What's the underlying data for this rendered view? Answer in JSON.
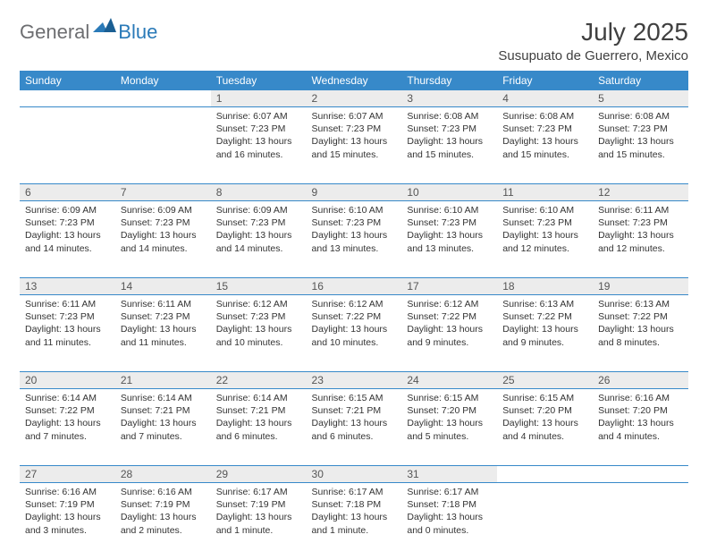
{
  "brand": {
    "general": "General",
    "blue": "Blue"
  },
  "title": "July 2025",
  "location": "Susupuato de Guerrero, Mexico",
  "colors": {
    "header_bg": "#3789c9",
    "header_text": "#ffffff",
    "daynum_bg": "#ececec",
    "text": "#333333",
    "brand_gray": "#6d6e71",
    "brand_blue": "#2a7ab8"
  },
  "weekdays": [
    "Sunday",
    "Monday",
    "Tuesday",
    "Wednesday",
    "Thursday",
    "Friday",
    "Saturday"
  ],
  "weeks": [
    [
      null,
      null,
      {
        "n": "1",
        "sr": "Sunrise: 6:07 AM",
        "ss": "Sunset: 7:23 PM",
        "dl": "Daylight: 13 hours and 16 minutes."
      },
      {
        "n": "2",
        "sr": "Sunrise: 6:07 AM",
        "ss": "Sunset: 7:23 PM",
        "dl": "Daylight: 13 hours and 15 minutes."
      },
      {
        "n": "3",
        "sr": "Sunrise: 6:08 AM",
        "ss": "Sunset: 7:23 PM",
        "dl": "Daylight: 13 hours and 15 minutes."
      },
      {
        "n": "4",
        "sr": "Sunrise: 6:08 AM",
        "ss": "Sunset: 7:23 PM",
        "dl": "Daylight: 13 hours and 15 minutes."
      },
      {
        "n": "5",
        "sr": "Sunrise: 6:08 AM",
        "ss": "Sunset: 7:23 PM",
        "dl": "Daylight: 13 hours and 15 minutes."
      }
    ],
    [
      {
        "n": "6",
        "sr": "Sunrise: 6:09 AM",
        "ss": "Sunset: 7:23 PM",
        "dl": "Daylight: 13 hours and 14 minutes."
      },
      {
        "n": "7",
        "sr": "Sunrise: 6:09 AM",
        "ss": "Sunset: 7:23 PM",
        "dl": "Daylight: 13 hours and 14 minutes."
      },
      {
        "n": "8",
        "sr": "Sunrise: 6:09 AM",
        "ss": "Sunset: 7:23 PM",
        "dl": "Daylight: 13 hours and 14 minutes."
      },
      {
        "n": "9",
        "sr": "Sunrise: 6:10 AM",
        "ss": "Sunset: 7:23 PM",
        "dl": "Daylight: 13 hours and 13 minutes."
      },
      {
        "n": "10",
        "sr": "Sunrise: 6:10 AM",
        "ss": "Sunset: 7:23 PM",
        "dl": "Daylight: 13 hours and 13 minutes."
      },
      {
        "n": "11",
        "sr": "Sunrise: 6:10 AM",
        "ss": "Sunset: 7:23 PM",
        "dl": "Daylight: 13 hours and 12 minutes."
      },
      {
        "n": "12",
        "sr": "Sunrise: 6:11 AM",
        "ss": "Sunset: 7:23 PM",
        "dl": "Daylight: 13 hours and 12 minutes."
      }
    ],
    [
      {
        "n": "13",
        "sr": "Sunrise: 6:11 AM",
        "ss": "Sunset: 7:23 PM",
        "dl": "Daylight: 13 hours and 11 minutes."
      },
      {
        "n": "14",
        "sr": "Sunrise: 6:11 AM",
        "ss": "Sunset: 7:23 PM",
        "dl": "Daylight: 13 hours and 11 minutes."
      },
      {
        "n": "15",
        "sr": "Sunrise: 6:12 AM",
        "ss": "Sunset: 7:23 PM",
        "dl": "Daylight: 13 hours and 10 minutes."
      },
      {
        "n": "16",
        "sr": "Sunrise: 6:12 AM",
        "ss": "Sunset: 7:22 PM",
        "dl": "Daylight: 13 hours and 10 minutes."
      },
      {
        "n": "17",
        "sr": "Sunrise: 6:12 AM",
        "ss": "Sunset: 7:22 PM",
        "dl": "Daylight: 13 hours and 9 minutes."
      },
      {
        "n": "18",
        "sr": "Sunrise: 6:13 AM",
        "ss": "Sunset: 7:22 PM",
        "dl": "Daylight: 13 hours and 9 minutes."
      },
      {
        "n": "19",
        "sr": "Sunrise: 6:13 AM",
        "ss": "Sunset: 7:22 PM",
        "dl": "Daylight: 13 hours and 8 minutes."
      }
    ],
    [
      {
        "n": "20",
        "sr": "Sunrise: 6:14 AM",
        "ss": "Sunset: 7:22 PM",
        "dl": "Daylight: 13 hours and 7 minutes."
      },
      {
        "n": "21",
        "sr": "Sunrise: 6:14 AM",
        "ss": "Sunset: 7:21 PM",
        "dl": "Daylight: 13 hours and 7 minutes."
      },
      {
        "n": "22",
        "sr": "Sunrise: 6:14 AM",
        "ss": "Sunset: 7:21 PM",
        "dl": "Daylight: 13 hours and 6 minutes."
      },
      {
        "n": "23",
        "sr": "Sunrise: 6:15 AM",
        "ss": "Sunset: 7:21 PM",
        "dl": "Daylight: 13 hours and 6 minutes."
      },
      {
        "n": "24",
        "sr": "Sunrise: 6:15 AM",
        "ss": "Sunset: 7:20 PM",
        "dl": "Daylight: 13 hours and 5 minutes."
      },
      {
        "n": "25",
        "sr": "Sunrise: 6:15 AM",
        "ss": "Sunset: 7:20 PM",
        "dl": "Daylight: 13 hours and 4 minutes."
      },
      {
        "n": "26",
        "sr": "Sunrise: 6:16 AM",
        "ss": "Sunset: 7:20 PM",
        "dl": "Daylight: 13 hours and 4 minutes."
      }
    ],
    [
      {
        "n": "27",
        "sr": "Sunrise: 6:16 AM",
        "ss": "Sunset: 7:19 PM",
        "dl": "Daylight: 13 hours and 3 minutes."
      },
      {
        "n": "28",
        "sr": "Sunrise: 6:16 AM",
        "ss": "Sunset: 7:19 PM",
        "dl": "Daylight: 13 hours and 2 minutes."
      },
      {
        "n": "29",
        "sr": "Sunrise: 6:17 AM",
        "ss": "Sunset: 7:19 PM",
        "dl": "Daylight: 13 hours and 1 minute."
      },
      {
        "n": "30",
        "sr": "Sunrise: 6:17 AM",
        "ss": "Sunset: 7:18 PM",
        "dl": "Daylight: 13 hours and 1 minute."
      },
      {
        "n": "31",
        "sr": "Sunrise: 6:17 AM",
        "ss": "Sunset: 7:18 PM",
        "dl": "Daylight: 13 hours and 0 minutes."
      },
      null,
      null
    ]
  ]
}
